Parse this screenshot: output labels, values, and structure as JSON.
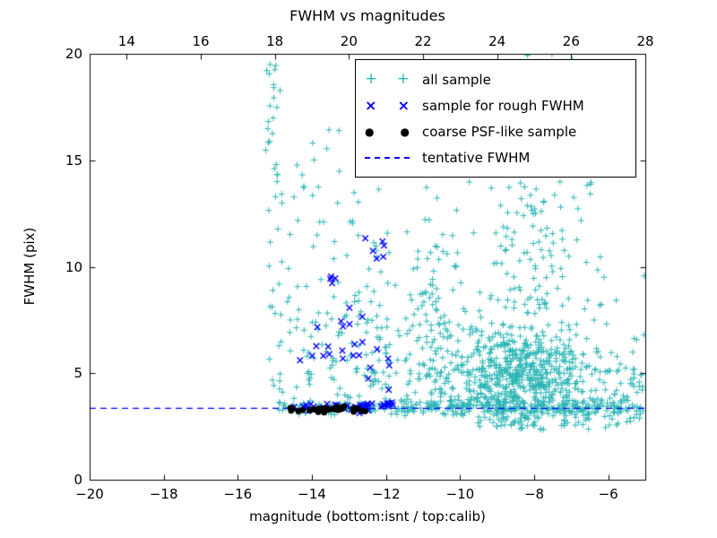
{
  "chart_data": {
    "type": "scatter",
    "title": "FWHM vs magnitudes",
    "xlabel": "magnitude (bottom:isnt / top:calib)",
    "ylabel": "FWHM (pix)",
    "grid": false,
    "legend_position": "upper right",
    "x_axis_bottom": {
      "min": -20,
      "max": -5,
      "ticks": [
        -20,
        -18,
        -16,
        -14,
        -12,
        -10,
        -8,
        -6
      ],
      "tick_labels": [
        "−20",
        "−18",
        "−16",
        "−14",
        "−12",
        "−10",
        "−8",
        "−6"
      ]
    },
    "x_axis_top": {
      "min": 13,
      "max": 28,
      "ticks": [
        14,
        16,
        18,
        20,
        22,
        24,
        26,
        28
      ],
      "tick_labels": [
        "14",
        "16",
        "18",
        "20",
        "22",
        "24",
        "26",
        "28"
      ]
    },
    "y_axis": {
      "min": 0,
      "max": 20,
      "ticks": [
        0,
        5,
        10,
        15,
        20
      ],
      "tick_labels": [
        "0",
        "5",
        "10",
        "15",
        "20"
      ]
    },
    "tentative_fwhm": 3.35,
    "seed": 7,
    "colors": {
      "all_sample": "#2cb5b5",
      "rough_fwhm": "#0000ff",
      "coarse_psf": "#000000",
      "tentative_line": "#0000ff"
    },
    "series": [
      {
        "name": "all sample",
        "marker": "plus",
        "color": "#2cb5b5",
        "z": 1,
        "clusters": [
          {
            "n": 18,
            "x": {
              "dist": "uniform",
              "min": -15.25,
              "max": -14.85
            },
            "y": {
              "dist": "uniform",
              "min": 15.2,
              "max": 19.6
            }
          },
          {
            "n": 22,
            "x": {
              "dist": "uniform",
              "min": -15.2,
              "max": -14.8
            },
            "y": {
              "dist": "uniform",
              "min": 4.2,
              "max": 15.2
            }
          },
          {
            "n": 120,
            "x": {
              "dist": "uniform",
              "min": -14.9,
              "max": -11.9
            },
            "y": {
              "dist": "normal",
              "mean": 6.2,
              "sd": 2.8,
              "min": 3.5,
              "max": 17
            }
          },
          {
            "n": 25,
            "x": {
              "dist": "uniform",
              "min": -14.5,
              "max": -12.2
            },
            "y": {
              "dist": "uniform",
              "min": 10,
              "max": 16.8
            }
          },
          {
            "n": 90,
            "x": {
              "dist": "normal",
              "mean": -10.6,
              "sd": 0.4,
              "min": -11.6,
              "max": -9.8
            },
            "y": {
              "dist": "normal",
              "mean": 7,
              "sd": 3.2,
              "min": 3,
              "max": 17.5
            }
          },
          {
            "n": 110,
            "x": {
              "dist": "uniform",
              "min": -12.4,
              "max": -9.6
            },
            "y": {
              "dist": "normal",
              "mean": 5.2,
              "sd": 2.0,
              "min": 3,
              "max": 13
            }
          },
          {
            "n": 650,
            "x": {
              "dist": "normal",
              "mean": -8.3,
              "sd": 0.9,
              "min": -10.4,
              "max": -5.4
            },
            "y": {
              "dist": "normal",
              "mean": 4.7,
              "sd": 1.3,
              "min": 2.3,
              "max": 8.5
            }
          },
          {
            "n": 120,
            "x": {
              "dist": "normal",
              "mean": -8.0,
              "sd": 0.8,
              "min": -10,
              "max": -6
            },
            "y": {
              "dist": "uniform",
              "min": 8,
              "max": 15
            }
          },
          {
            "n": 70,
            "x": {
              "dist": "normal",
              "mean": -7.9,
              "sd": 0.55,
              "min": -9.2,
              "max": -6.6
            },
            "y": {
              "dist": "uniform",
              "min": 14.5,
              "max": 20
            }
          },
          {
            "n": 90,
            "x": {
              "dist": "uniform",
              "min": -14.9,
              "max": -11.5
            },
            "y": {
              "dist": "normal",
              "mean": 3.4,
              "sd": 0.15
            }
          },
          {
            "n": 200,
            "x": {
              "dist": "uniform",
              "min": -11.5,
              "max": -5.1
            },
            "y": {
              "dist": "normal",
              "mean": 3.4,
              "sd": 0.18
            }
          },
          {
            "n": 90,
            "x": {
              "dist": "uniform",
              "min": -7.2,
              "max": -5.0
            },
            "y": {
              "dist": "normal",
              "mean": 3.8,
              "sd": 0.9,
              "min": 2.2,
              "max": 6.5
            }
          },
          {
            "n": 20,
            "x": {
              "dist": "uniform",
              "min": -6.4,
              "max": -5.0
            },
            "y": {
              "dist": "uniform",
              "min": 4.5,
              "max": 10.5
            }
          }
        ]
      },
      {
        "name": "sample for rough FWHM",
        "marker": "x",
        "color": "#0000ff",
        "z": 3,
        "clusters": [
          {
            "n": 40,
            "x": {
              "dist": "uniform",
              "min": -14.55,
              "max": -11.75
            },
            "y": {
              "dist": "normal",
              "mean": 3.45,
              "sd": 0.12
            }
          },
          {
            "n": 6,
            "x": {
              "dist": "uniform",
              "min": -12.65,
              "max": -12.05
            },
            "y": {
              "dist": "uniform",
              "min": 10.2,
              "max": 11.75
            }
          },
          {
            "n": 4,
            "x": {
              "dist": "uniform",
              "min": -13.6,
              "max": -13.25
            },
            "y": {
              "dist": "uniform",
              "min": 8.8,
              "max": 9.6
            }
          },
          {
            "n": 14,
            "x": {
              "dist": "uniform",
              "min": -13.4,
              "max": -12.2
            },
            "y": {
              "dist": "uniform",
              "min": 4.3,
              "max": 8.3
            }
          },
          {
            "n": 7,
            "x": {
              "dist": "uniform",
              "min": -14.35,
              "max": -13.5
            },
            "y": {
              "dist": "uniform",
              "min": 5.2,
              "max": 7.6
            }
          },
          {
            "n": 3,
            "x": {
              "dist": "uniform",
              "min": -12.1,
              "max": -11.8
            },
            "y": {
              "dist": "uniform",
              "min": 4.2,
              "max": 6.0
            }
          }
        ]
      },
      {
        "name": "coarse PSF-like sample",
        "marker": "dot",
        "color": "#000000",
        "z": 4,
        "clusters": [
          {
            "n": 34,
            "x": {
              "dist": "uniform",
              "min": -14.6,
              "max": -12.55
            },
            "y": {
              "dist": "normal",
              "mean": 3.32,
              "sd": 0.06
            }
          }
        ]
      },
      {
        "name": "tentative FWHM",
        "type": "hline",
        "y": 3.35,
        "linestyle": "dashed",
        "color": "#0000ff",
        "z": 2
      }
    ]
  }
}
